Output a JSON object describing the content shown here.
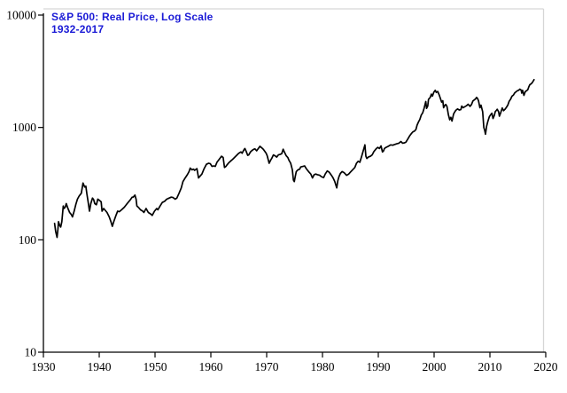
{
  "title": {
    "line1": "S&P 500: Real Price, Log Scale",
    "line2": "1932-2017",
    "color": "#1a1ad6"
  },
  "chart_data": {
    "type": "line",
    "title": "S&P 500: Real Price, Log Scale",
    "subtitle": "1932-2017",
    "y_scale": "log",
    "grid": false,
    "legend": "none",
    "xlim": [
      1930,
      2020
    ],
    "ylim": [
      10,
      10000
    ],
    "x_ticks": [
      1930,
      1940,
      1950,
      1960,
      1970,
      1980,
      1990,
      2000,
      2010,
      2020
    ],
    "y_ticks": [
      10,
      100,
      1000,
      10000
    ],
    "colors": {
      "line": "#000000",
      "axis": "#000000",
      "frame": "#d6d6d6",
      "title": "#1a1ad6"
    },
    "series": [
      {
        "name": "S&P 500 real price (log scale)",
        "points": [
          [
            1932.0,
            140
          ],
          [
            1932.2,
            118
          ],
          [
            1932.45,
            105
          ],
          [
            1932.6,
            125
          ],
          [
            1932.7,
            145
          ],
          [
            1932.9,
            135
          ],
          [
            1933.1,
            130
          ],
          [
            1933.3,
            145
          ],
          [
            1933.55,
            200
          ],
          [
            1933.7,
            190
          ],
          [
            1933.9,
            195
          ],
          [
            1934.1,
            210
          ],
          [
            1934.4,
            190
          ],
          [
            1934.7,
            175
          ],
          [
            1935.0,
            168
          ],
          [
            1935.2,
            160
          ],
          [
            1935.5,
            180
          ],
          [
            1935.8,
            205
          ],
          [
            1936.1,
            230
          ],
          [
            1936.4,
            245
          ],
          [
            1936.8,
            260
          ],
          [
            1937.1,
            320
          ],
          [
            1937.4,
            295
          ],
          [
            1937.6,
            300
          ],
          [
            1937.8,
            255
          ],
          [
            1938.0,
            220
          ],
          [
            1938.25,
            180
          ],
          [
            1938.5,
            210
          ],
          [
            1938.8,
            235
          ],
          [
            1939.0,
            228
          ],
          [
            1939.2,
            210
          ],
          [
            1939.5,
            205
          ],
          [
            1939.75,
            230
          ],
          [
            1940.0,
            225
          ],
          [
            1940.35,
            218
          ],
          [
            1940.5,
            180
          ],
          [
            1940.8,
            190
          ],
          [
            1941.0,
            185
          ],
          [
            1941.4,
            175
          ],
          [
            1941.8,
            160
          ],
          [
            1942.1,
            145
          ],
          [
            1942.35,
            132
          ],
          [
            1942.6,
            145
          ],
          [
            1943.0,
            165
          ],
          [
            1943.3,
            180
          ],
          [
            1943.6,
            178
          ],
          [
            1944.0,
            185
          ],
          [
            1944.5,
            195
          ],
          [
            1945.0,
            210
          ],
          [
            1945.5,
            225
          ],
          [
            1945.9,
            240
          ],
          [
            1946.1,
            240
          ],
          [
            1946.4,
            250
          ],
          [
            1946.6,
            230
          ],
          [
            1946.75,
            200
          ],
          [
            1947.0,
            195
          ],
          [
            1947.4,
            185
          ],
          [
            1947.8,
            180
          ],
          [
            1948.0,
            175
          ],
          [
            1948.4,
            190
          ],
          [
            1948.8,
            175
          ],
          [
            1949.2,
            170
          ],
          [
            1949.5,
            165
          ],
          [
            1949.9,
            180
          ],
          [
            1950.3,
            190
          ],
          [
            1950.5,
            185
          ],
          [
            1950.9,
            200
          ],
          [
            1951.3,
            215
          ],
          [
            1951.7,
            220
          ],
          [
            1952.1,
            230
          ],
          [
            1952.5,
            235
          ],
          [
            1952.9,
            240
          ],
          [
            1953.2,
            238
          ],
          [
            1953.6,
            230
          ],
          [
            1953.9,
            235
          ],
          [
            1954.3,
            260
          ],
          [
            1954.7,
            290
          ],
          [
            1955.0,
            330
          ],
          [
            1955.4,
            355
          ],
          [
            1955.8,
            380
          ],
          [
            1956.1,
            405
          ],
          [
            1956.3,
            435
          ],
          [
            1956.6,
            420
          ],
          [
            1956.9,
            425
          ],
          [
            1957.1,
            415
          ],
          [
            1957.5,
            430
          ],
          [
            1957.8,
            355
          ],
          [
            1958.0,
            365
          ],
          [
            1958.4,
            385
          ],
          [
            1958.8,
            430
          ],
          [
            1959.2,
            470
          ],
          [
            1959.6,
            480
          ],
          [
            1959.9,
            475
          ],
          [
            1960.2,
            450
          ],
          [
            1960.5,
            455
          ],
          [
            1960.8,
            450
          ],
          [
            1961.1,
            490
          ],
          [
            1961.5,
            520
          ],
          [
            1961.9,
            555
          ],
          [
            1962.2,
            540
          ],
          [
            1962.45,
            440
          ],
          [
            1962.7,
            450
          ],
          [
            1962.9,
            465
          ],
          [
            1963.2,
            485
          ],
          [
            1963.6,
            505
          ],
          [
            1963.9,
            520
          ],
          [
            1964.3,
            545
          ],
          [
            1964.7,
            570
          ],
          [
            1965.0,
            590
          ],
          [
            1965.4,
            605
          ],
          [
            1965.6,
            590
          ],
          [
            1965.9,
            630
          ],
          [
            1966.1,
            650
          ],
          [
            1966.35,
            610
          ],
          [
            1966.6,
            565
          ],
          [
            1966.8,
            570
          ],
          [
            1967.1,
            605
          ],
          [
            1967.4,
            625
          ],
          [
            1967.7,
            640
          ],
          [
            1967.9,
            645
          ],
          [
            1968.2,
            620
          ],
          [
            1968.5,
            650
          ],
          [
            1968.8,
            680
          ],
          [
            1969.1,
            660
          ],
          [
            1969.4,
            640
          ],
          [
            1969.7,
            610
          ],
          [
            1969.9,
            590
          ],
          [
            1970.1,
            560
          ],
          [
            1970.45,
            480
          ],
          [
            1970.7,
            510
          ],
          [
            1970.9,
            530
          ],
          [
            1971.2,
            570
          ],
          [
            1971.5,
            560
          ],
          [
            1971.8,
            545
          ],
          [
            1972.1,
            570
          ],
          [
            1972.4,
            575
          ],
          [
            1972.7,
            585
          ],
          [
            1972.95,
            640
          ],
          [
            1973.2,
            600
          ],
          [
            1973.5,
            560
          ],
          [
            1973.8,
            540
          ],
          [
            1974.0,
            510
          ],
          [
            1974.3,
            480
          ],
          [
            1974.6,
            420
          ],
          [
            1974.8,
            340
          ],
          [
            1974.95,
            330
          ],
          [
            1975.1,
            360
          ],
          [
            1975.3,
            405
          ],
          [
            1975.6,
            420
          ],
          [
            1975.9,
            425
          ],
          [
            1976.1,
            445
          ],
          [
            1976.5,
            450
          ],
          [
            1976.8,
            455
          ],
          [
            1977.1,
            430
          ],
          [
            1977.5,
            405
          ],
          [
            1977.9,
            385
          ],
          [
            1978.2,
            355
          ],
          [
            1978.5,
            380
          ],
          [
            1978.8,
            385
          ],
          [
            1979.1,
            380
          ],
          [
            1979.5,
            375
          ],
          [
            1979.8,
            365
          ],
          [
            1980.2,
            358
          ],
          [
            1980.5,
            385
          ],
          [
            1980.85,
            410
          ],
          [
            1981.2,
            400
          ],
          [
            1981.6,
            375
          ],
          [
            1981.9,
            355
          ],
          [
            1982.2,
            330
          ],
          [
            1982.55,
            290
          ],
          [
            1982.75,
            335
          ],
          [
            1982.95,
            365
          ],
          [
            1983.2,
            390
          ],
          [
            1983.5,
            405
          ],
          [
            1983.9,
            395
          ],
          [
            1984.3,
            375
          ],
          [
            1984.7,
            385
          ],
          [
            1985.0,
            400
          ],
          [
            1985.4,
            420
          ],
          [
            1985.8,
            440
          ],
          [
            1986.1,
            480
          ],
          [
            1986.4,
            500
          ],
          [
            1986.7,
            490
          ],
          [
            1987.0,
            550
          ],
          [
            1987.3,
            620
          ],
          [
            1987.6,
            700
          ],
          [
            1987.78,
            555
          ],
          [
            1987.95,
            530
          ],
          [
            1988.2,
            545
          ],
          [
            1988.6,
            555
          ],
          [
            1988.9,
            570
          ],
          [
            1989.2,
            610
          ],
          [
            1989.6,
            645
          ],
          [
            1989.9,
            665
          ],
          [
            1990.2,
            650
          ],
          [
            1990.5,
            685
          ],
          [
            1990.75,
            605
          ],
          [
            1990.95,
            620
          ],
          [
            1991.1,
            650
          ],
          [
            1991.4,
            665
          ],
          [
            1991.8,
            680
          ],
          [
            1992.2,
            700
          ],
          [
            1992.6,
            695
          ],
          [
            1992.9,
            705
          ],
          [
            1993.3,
            715
          ],
          [
            1993.7,
            725
          ],
          [
            1994.05,
            750
          ],
          [
            1994.35,
            725
          ],
          [
            1994.7,
            730
          ],
          [
            1994.95,
            740
          ],
          [
            1995.3,
            790
          ],
          [
            1995.6,
            840
          ],
          [
            1995.9,
            880
          ],
          [
            1996.2,
            915
          ],
          [
            1996.5,
            930
          ],
          [
            1996.75,
            960
          ],
          [
            1996.95,
            1050
          ],
          [
            1997.2,
            1120
          ],
          [
            1997.45,
            1180
          ],
          [
            1997.7,
            1290
          ],
          [
            1997.95,
            1350
          ],
          [
            1998.2,
            1480
          ],
          [
            1998.5,
            1700
          ],
          [
            1998.65,
            1480
          ],
          [
            1998.85,
            1550
          ],
          [
            1999.0,
            1780
          ],
          [
            1999.3,
            1850
          ],
          [
            1999.5,
            1980
          ],
          [
            1999.7,
            1900
          ],
          [
            1999.95,
            2060
          ],
          [
            2000.2,
            2140
          ],
          [
            2000.4,
            2050
          ],
          [
            2000.65,
            2090
          ],
          [
            2000.9,
            1950
          ],
          [
            2001.1,
            1830
          ],
          [
            2001.35,
            1680
          ],
          [
            2001.55,
            1730
          ],
          [
            2001.7,
            1500
          ],
          [
            2001.9,
            1570
          ],
          [
            2002.1,
            1600
          ],
          [
            2002.3,
            1540
          ],
          [
            2002.55,
            1300
          ],
          [
            2002.8,
            1170
          ],
          [
            2003.0,
            1230
          ],
          [
            2003.2,
            1140
          ],
          [
            2003.5,
            1320
          ],
          [
            2003.8,
            1400
          ],
          [
            2003.95,
            1430
          ],
          [
            2004.2,
            1460
          ],
          [
            2004.5,
            1430
          ],
          [
            2004.8,
            1440
          ],
          [
            2004.95,
            1550
          ],
          [
            2005.2,
            1500
          ],
          [
            2005.5,
            1530
          ],
          [
            2005.8,
            1560
          ],
          [
            2006.1,
            1610
          ],
          [
            2006.45,
            1540
          ],
          [
            2006.7,
            1600
          ],
          [
            2006.95,
            1720
          ],
          [
            2007.2,
            1760
          ],
          [
            2007.45,
            1800
          ],
          [
            2007.6,
            1850
          ],
          [
            2007.78,
            1810
          ],
          [
            2007.95,
            1730
          ],
          [
            2008.2,
            1500
          ],
          [
            2008.4,
            1580
          ],
          [
            2008.7,
            1380
          ],
          [
            2008.9,
            1000
          ],
          [
            2009.05,
            950
          ],
          [
            2009.2,
            870
          ],
          [
            2009.4,
            1020
          ],
          [
            2009.6,
            1120
          ],
          [
            2009.9,
            1250
          ],
          [
            2010.2,
            1310
          ],
          [
            2010.35,
            1340
          ],
          [
            2010.55,
            1200
          ],
          [
            2010.8,
            1280
          ],
          [
            2010.95,
            1380
          ],
          [
            2011.2,
            1430
          ],
          [
            2011.3,
            1450
          ],
          [
            2011.55,
            1380
          ],
          [
            2011.7,
            1260
          ],
          [
            2011.9,
            1340
          ],
          [
            2012.2,
            1490
          ],
          [
            2012.45,
            1410
          ],
          [
            2012.7,
            1450
          ],
          [
            2012.95,
            1510
          ],
          [
            2013.2,
            1580
          ],
          [
            2013.45,
            1710
          ],
          [
            2013.7,
            1780
          ],
          [
            2013.95,
            1900
          ],
          [
            2014.2,
            1940
          ],
          [
            2014.45,
            2030
          ],
          [
            2014.7,
            2080
          ],
          [
            2014.95,
            2130
          ],
          [
            2015.15,
            2140
          ],
          [
            2015.35,
            2190
          ],
          [
            2015.6,
            2150
          ],
          [
            2015.7,
            2020
          ],
          [
            2015.85,
            2140
          ],
          [
            2016.1,
            1930
          ],
          [
            2016.35,
            2090
          ],
          [
            2016.6,
            2130
          ],
          [
            2016.8,
            2170
          ],
          [
            2016.95,
            2290
          ],
          [
            2017.15,
            2400
          ],
          [
            2017.4,
            2450
          ],
          [
            2017.6,
            2510
          ],
          [
            2017.9,
            2660
          ]
        ]
      }
    ]
  }
}
